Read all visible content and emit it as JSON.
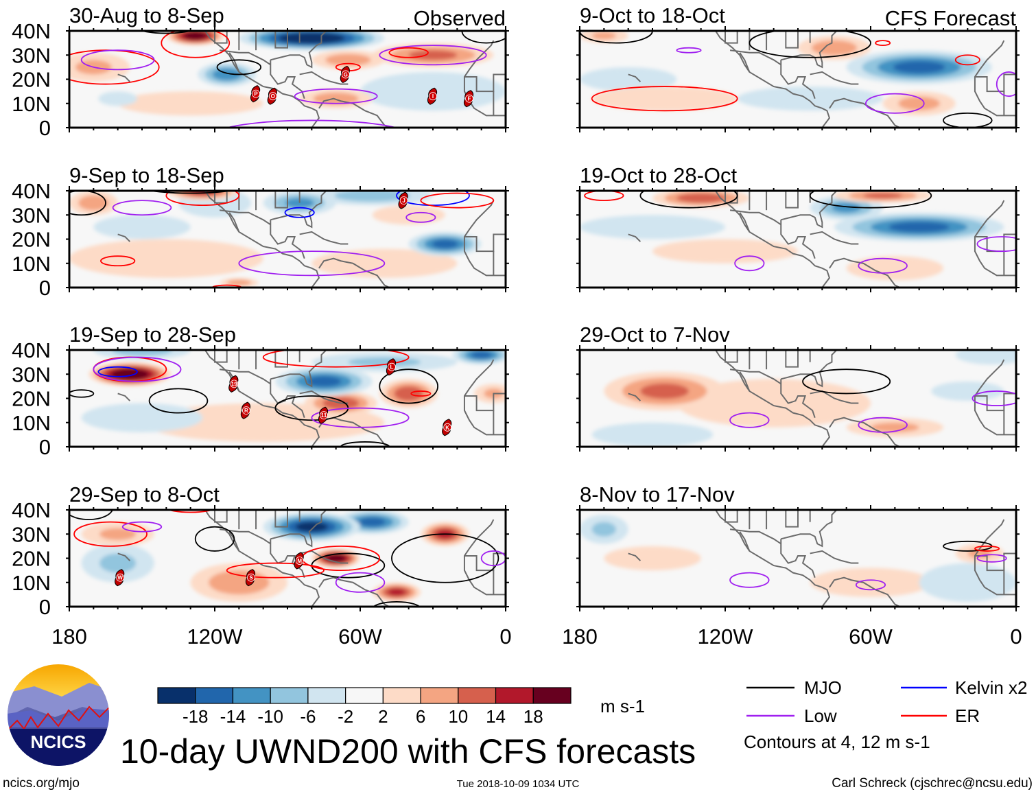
{
  "figure_title": "10-day UWND200 with CFS forecasts",
  "units": "m s-1",
  "column_labels": {
    "observed": "Observed",
    "forecast": "CFS Forecast"
  },
  "lat_labels": [
    "40N",
    "30N",
    "20N",
    "10N",
    "0"
  ],
  "lon_labels": [
    "180",
    "120W",
    "60W",
    "0"
  ],
  "colorbar": {
    "labels": [
      "-18",
      "-14",
      "-10",
      "-6",
      "-2",
      "2",
      "6",
      "10",
      "14",
      "18"
    ],
    "colors": [
      "#08306b",
      "#2166ac",
      "#4393c3",
      "#92c5de",
      "#d1e5f0",
      "#f7f7f7",
      "#fddbc7",
      "#f4a582",
      "#d6604d",
      "#b2182b",
      "#67001f"
    ]
  },
  "legend": {
    "items": [
      {
        "label": "MJO",
        "color": "#000000"
      },
      {
        "label": "Kelvin x2",
        "color": "#0000ff"
      },
      {
        "label": "Low",
        "color": "#a020f0"
      },
      {
        "label": "ER",
        "color": "#ff0000"
      }
    ],
    "contours_note": "Contours at 4, 12 m s-1"
  },
  "logo_text": "NCICS",
  "footer": {
    "url": "ncics.org/mjo",
    "timestamp": "Tue 2018-10-09 1034 UTC",
    "author": "Carl Schreck (cjschrec@ncsu.edu)"
  },
  "panels": [
    {
      "title": "30-Aug to 8-Sep",
      "tag": "Observed",
      "blobs": [
        [
          80,
          37,
          30,
          5,
          -22
        ],
        [
          115,
          22,
          12,
          5,
          -12
        ],
        [
          160,
          12,
          8,
          3,
          -5
        ],
        [
          30,
          15,
          30,
          8,
          -4
        ],
        [
          128,
          38,
          12,
          4,
          20
        ],
        [
          30,
          30,
          25,
          5,
          10
        ],
        [
          65,
          28,
          15,
          4,
          8
        ],
        [
          70,
          12,
          15,
          4,
          8
        ],
        [
          170,
          25,
          15,
          6,
          6
        ],
        [
          130,
          10,
          30,
          5,
          3
        ]
      ],
      "contours": [
        [
          "ER",
          165,
          25,
          22,
          7
        ],
        [
          "Low",
          160,
          28,
          15,
          4
        ],
        [
          "ER",
          128,
          35,
          14,
          6
        ],
        [
          "MJO",
          110,
          25,
          9,
          3
        ],
        [
          "Low",
          70,
          13,
          17,
          3
        ],
        [
          "Low",
          30,
          30,
          22,
          4
        ],
        [
          "ER",
          40,
          31,
          8,
          2
        ],
        [
          "ER",
          65,
          25,
          5,
          1.5
        ],
        [
          "Low",
          80,
          -3,
          40,
          6
        ],
        [
          "Low",
          140,
          -3,
          30,
          2
        ],
        [
          "MJO",
          140,
          43,
          15,
          4
        ],
        [
          "MJO",
          8,
          40,
          10,
          5
        ]
      ],
      "storms": [
        [
          "P",
          103,
          14
        ],
        [
          "O",
          96,
          13
        ],
        [
          "G",
          66,
          22
        ],
        [
          "I",
          30,
          13
        ],
        [
          "F",
          15,
          12
        ]
      ]
    },
    {
      "title": "9-Oct to 18-Oct",
      "tag": "CFS Forecast",
      "blobs": [
        [
          40,
          25,
          30,
          7,
          -14
        ],
        [
          160,
          20,
          20,
          5,
          -5
        ],
        [
          85,
          12,
          30,
          5,
          -4
        ],
        [
          75,
          33,
          15,
          5,
          8
        ],
        [
          145,
          12,
          30,
          5,
          5
        ],
        [
          40,
          10,
          15,
          5,
          7
        ],
        [
          170,
          38,
          10,
          3,
          6
        ]
      ],
      "contours": [
        [
          "ER",
          145,
          12,
          30,
          5
        ],
        [
          "MJO",
          165,
          40,
          15,
          5
        ],
        [
          "Low",
          135,
          32,
          5,
          1
        ],
        [
          "ER",
          55,
          35,
          3,
          1
        ],
        [
          "ER",
          20,
          28,
          5,
          2
        ],
        [
          "Low",
          50,
          10,
          12,
          4
        ],
        [
          "MJO",
          20,
          3,
          10,
          3
        ],
        [
          "MJO",
          85,
          35,
          25,
          6
        ],
        [
          "Low",
          3,
          18,
          5,
          5
        ]
      ],
      "storms": []
    },
    {
      "title": "9-Sep to 18-Sep",
      "tag": "",
      "blobs": [
        [
          25,
          18,
          15,
          5,
          -14
        ],
        [
          85,
          35,
          15,
          5,
          -10
        ],
        [
          55,
          38,
          25,
          4,
          -8
        ],
        [
          120,
          35,
          15,
          6,
          -5
        ],
        [
          150,
          25,
          20,
          5,
          -4
        ],
        [
          125,
          40,
          15,
          4,
          14
        ],
        [
          170,
          35,
          10,
          5,
          8
        ],
        [
          110,
          2,
          8,
          2,
          8
        ],
        [
          40,
          30,
          15,
          4,
          5
        ],
        [
          140,
          12,
          40,
          8,
          3
        ],
        [
          50,
          10,
          30,
          6,
          3
        ]
      ],
      "contours": [
        [
          "MJO",
          175,
          35,
          10,
          5
        ],
        [
          "Low",
          150,
          33,
          12,
          3
        ],
        [
          "ER",
          125,
          38,
          15,
          4
        ],
        [
          "ER",
          160,
          11,
          7,
          2
        ],
        [
          "Low",
          80,
          10,
          30,
          5
        ],
        [
          "Kelvin",
          85,
          31,
          6,
          2
        ],
        [
          "Kelvin",
          30,
          38,
          15,
          4
        ],
        [
          "ER",
          20,
          36,
          15,
          3
        ],
        [
          "Low",
          35,
          29,
          6,
          2
        ],
        [
          "MJO",
          130,
          43,
          25,
          4
        ],
        [
          "ER",
          115,
          0,
          6,
          1
        ]
      ],
      "storms": [
        [
          "J",
          42,
          36
        ]
      ]
    },
    {
      "title": "19-Oct to 28-Oct",
      "tag": "",
      "blobs": [
        [
          40,
          25,
          35,
          6,
          -14
        ],
        [
          70,
          33,
          15,
          5,
          -10
        ],
        [
          150,
          25,
          30,
          5,
          -4
        ],
        [
          130,
          37,
          20,
          4,
          12
        ],
        [
          55,
          38,
          20,
          3,
          10
        ],
        [
          50,
          8,
          20,
          5,
          5
        ],
        [
          120,
          15,
          30,
          5,
          3
        ]
      ],
      "contours": [
        [
          "MJO",
          135,
          38,
          20,
          5
        ],
        [
          "ER",
          170,
          38,
          8,
          2
        ],
        [
          "MJO",
          60,
          38,
          25,
          5
        ],
        [
          "Low",
          110,
          10,
          6,
          3
        ],
        [
          "Low",
          55,
          9,
          10,
          3
        ],
        [
          "Low",
          6,
          18,
          10,
          3
        ]
      ],
      "storms": []
    },
    {
      "title": "19-Sep to 28-Sep",
      "tag": "",
      "blobs": [
        [
          150,
          40,
          20,
          4,
          -8
        ],
        [
          75,
          27,
          20,
          6,
          -14
        ],
        [
          10,
          38,
          12,
          4,
          -14
        ],
        [
          50,
          35,
          30,
          4,
          -6
        ],
        [
          150,
          12,
          25,
          6,
          -5
        ],
        [
          155,
          30,
          17,
          5,
          22
        ],
        [
          40,
          22,
          12,
          6,
          12
        ],
        [
          68,
          18,
          15,
          5,
          12
        ],
        [
          5,
          22,
          8,
          4,
          6
        ],
        [
          100,
          10,
          50,
          8,
          3
        ]
      ],
      "contours": [
        [
          "ER",
          155,
          32,
          15,
          5
        ],
        [
          "Low",
          152,
          32,
          18,
          5
        ],
        [
          "Kelvin",
          160,
          31,
          8,
          2
        ],
        [
          "MJO",
          175,
          22,
          5,
          1.5
        ],
        [
          "MJO",
          135,
          19,
          12,
          5
        ],
        [
          "MJO",
          80,
          16,
          15,
          5
        ],
        [
          "MJO",
          40,
          25,
          12,
          7
        ],
        [
          "ER",
          35,
          22,
          4,
          1
        ],
        [
          "ER",
          70,
          37,
          30,
          4
        ],
        [
          "Low",
          60,
          12,
          20,
          4
        ],
        [
          "MJO",
          58,
          0,
          10,
          2
        ]
      ],
      "storms": [
        [
          "19",
          112,
          26
        ],
        [
          "R",
          107,
          15
        ],
        [
          "11",
          75,
          13
        ],
        [
          "L",
          47,
          33
        ],
        [
          "K",
          24,
          8
        ]
      ]
    },
    {
      "title": "29-Oct to 7-Nov",
      "tag": "",
      "blobs": [
        [
          20,
          23,
          15,
          4,
          -5
        ],
        [
          150,
          5,
          25,
          5,
          -4
        ],
        [
          10,
          38,
          15,
          4,
          -4
        ],
        [
          145,
          23,
          25,
          8,
          10
        ],
        [
          50,
          8,
          20,
          4,
          6
        ],
        [
          100,
          18,
          40,
          10,
          3
        ]
      ],
      "contours": [
        [
          "MJO",
          70,
          27,
          18,
          5
        ],
        [
          "Low",
          110,
          11,
          8,
          3
        ],
        [
          "Low",
          55,
          9,
          10,
          3
        ],
        [
          "Low",
          8,
          20,
          10,
          3
        ]
      ],
      "storms": []
    },
    {
      "title": "29-Sep to 8-Oct",
      "tag": "",
      "blobs": [
        [
          80,
          33,
          20,
          6,
          -18
        ],
        [
          55,
          35,
          15,
          5,
          -14
        ],
        [
          160,
          18,
          15,
          8,
          -6
        ],
        [
          70,
          20,
          10,
          4,
          20
        ],
        [
          110,
          10,
          20,
          8,
          8
        ],
        [
          45,
          6,
          10,
          4,
          14
        ],
        [
          25,
          30,
          10,
          5,
          14
        ],
        [
          160,
          30,
          15,
          5,
          6
        ]
      ],
      "contours": [
        [
          "ER",
          163,
          30,
          15,
          5
        ],
        [
          "Low",
          150,
          33,
          8,
          2
        ],
        [
          "MJO",
          120,
          28,
          8,
          5
        ],
        [
          "MJO",
          65,
          17,
          15,
          5
        ],
        [
          "ER",
          68,
          20,
          16,
          5
        ],
        [
          "ER",
          95,
          15,
          20,
          3
        ],
        [
          "Low",
          60,
          10,
          10,
          4
        ],
        [
          "MJO",
          25,
          20,
          22,
          10
        ],
        [
          "MJO",
          172,
          41,
          10,
          5
        ],
        [
          "ER",
          130,
          41,
          10,
          2
        ],
        [
          "Low",
          5,
          20,
          5,
          3
        ],
        [
          "MJO",
          45,
          -1,
          10,
          3
        ]
      ],
      "storms": [
        [
          "W",
          159,
          12
        ],
        [
          "S",
          105,
          12
        ],
        [
          "M",
          85,
          19
        ]
      ]
    },
    {
      "title": "8-Nov to 17-Nov",
      "tag": "",
      "blobs": [
        [
          170,
          32,
          10,
          6,
          -6
        ],
        [
          20,
          10,
          20,
          8,
          -4
        ],
        [
          150,
          20,
          20,
          5,
          4
        ],
        [
          60,
          10,
          25,
          6,
          3
        ],
        [
          15,
          22,
          10,
          4,
          6
        ]
      ],
      "contours": [
        [
          "MJO",
          20,
          25,
          10,
          2
        ],
        [
          "ER",
          12,
          24,
          5,
          1
        ],
        [
          "Low",
          10,
          20,
          6,
          1.5
        ],
        [
          "Low",
          110,
          11,
          8,
          3
        ],
        [
          "Low",
          60,
          9,
          6,
          2
        ]
      ],
      "storms": []
    }
  ]
}
